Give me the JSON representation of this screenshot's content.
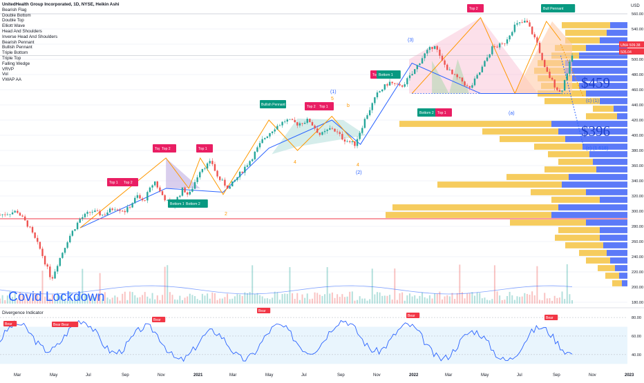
{
  "chart_data": {
    "type": "candlestick",
    "symbol_title": "UnitedHealth Group Incorporated, 1D, NYSE, Heikin Ashi",
    "indicator_legend": [
      "Bearish Flag",
      "Double Bottom",
      "Double Top",
      "Elliott Wave",
      "Head And Shoulders",
      "Inverse Head And Shoulders",
      "Bearish Pennant",
      "Bullish Pennant",
      "Triple Bottom",
      "Triple Top",
      "Falling Wedge",
      "VRVP",
      "Vol",
      "VWAP AA"
    ],
    "currency": "USD",
    "y_ticks": [
      180,
      200,
      220,
      240,
      260,
      280,
      300,
      320,
      340,
      360,
      380,
      400,
      420,
      440,
      460,
      480,
      500,
      520,
      540,
      560
    ],
    "ylim": [
      180,
      560
    ],
    "x_ticks": [
      "Mar",
      "May",
      "Jul",
      "Sep",
      "Nov",
      "2021",
      "Mar",
      "May",
      "Jul",
      "Sep",
      "Nov",
      "2022",
      "Mar",
      "May",
      "Jul",
      "Sep",
      "Nov",
      "2023"
    ],
    "price_badges": [
      {
        "label": "UNH",
        "value": "509.38",
        "color": "#f23645"
      },
      {
        "label": "",
        "value": "505.04",
        "color": "#f23645"
      }
    ],
    "red_horizontal_level": 290,
    "annotations": {
      "lockdown": "Covid Lockdown",
      "target1": "$459",
      "target2": "$396",
      "wave_c1": "(c) (1)",
      "wave_c1618": "(c) (1.618)",
      "wave_a": "(a)",
      "wave_3": "(3)",
      "wave_1": "(1)",
      "wave_2": "(2)",
      "wave_5": "5",
      "wave_4": "4",
      "wave_b": "b",
      "wave_4b": "4",
      "wave_2b": "2",
      "wave_1b": "1",
      "pennant": "Bullish Pennant"
    },
    "pattern_labels": [
      {
        "text": "Top 1",
        "kind": "top"
      },
      {
        "text": "Top 2",
        "kind": "top"
      },
      {
        "text": "Bottom 1",
        "kind": "bottom"
      },
      {
        "text": "Bottom 2",
        "kind": "bottom"
      },
      {
        "text": "Top 1",
        "kind": "top"
      },
      {
        "text": "Top 2",
        "kind": "top"
      },
      {
        "text": "Top 1",
        "kind": "top"
      },
      {
        "text": "Top 2",
        "kind": "top"
      },
      {
        "text": "Top 1",
        "kind": "top"
      },
      {
        "text": "Top 2",
        "kind": "top"
      },
      {
        "text": "Bottom 1",
        "kind": "bottom"
      },
      {
        "text": "Bottom 2",
        "kind": "bottom"
      },
      {
        "text": "Top 1",
        "kind": "top"
      },
      {
        "text": "Top 2",
        "kind": "top"
      },
      {
        "text": "Bull Pennant",
        "kind": "bottom"
      }
    ],
    "price_series": [
      [
        0,
        295
      ],
      [
        0.03,
        300
      ],
      [
        0.05,
        280
      ],
      [
        0.07,
        250
      ],
      [
        0.09,
        210
      ],
      [
        0.1,
        230
      ],
      [
        0.12,
        265
      ],
      [
        0.14,
        290
      ],
      [
        0.16,
        300
      ],
      [
        0.18,
        295
      ],
      [
        0.2,
        305
      ],
      [
        0.22,
        300
      ],
      [
        0.24,
        320
      ],
      [
        0.25,
        312
      ],
      [
        0.27,
        340
      ],
      [
        0.28,
        325
      ],
      [
        0.3,
        305
      ],
      [
        0.32,
        330
      ],
      [
        0.33,
        320
      ],
      [
        0.35,
        355
      ],
      [
        0.37,
        365
      ],
      [
        0.38,
        345
      ],
      [
        0.4,
        330
      ],
      [
        0.42,
        350
      ],
      [
        0.44,
        370
      ],
      [
        0.46,
        395
      ],
      [
        0.48,
        410
      ],
      [
        0.5,
        420
      ],
      [
        0.52,
        415
      ],
      [
        0.54,
        420
      ],
      [
        0.56,
        400
      ],
      [
        0.58,
        410
      ],
      [
        0.6,
        395
      ],
      [
        0.62,
        388
      ],
      [
        0.64,
        425
      ],
      [
        0.66,
        455
      ],
      [
        0.68,
        470
      ],
      [
        0.7,
        463
      ],
      [
        0.72,
        480
      ],
      [
        0.74,
        505
      ],
      [
        0.76,
        520
      ],
      [
        0.77,
        500
      ],
      [
        0.79,
        480
      ],
      [
        0.81,
        470
      ],
      [
        0.82,
        460
      ],
      [
        0.84,
        485
      ],
      [
        0.86,
        515
      ],
      [
        0.88,
        520
      ],
      [
        0.9,
        545
      ],
      [
        0.92,
        550
      ],
      [
        0.94,
        520
      ],
      [
        0.95,
        490
      ],
      [
        0.97,
        465
      ],
      [
        0.98,
        455
      ],
      [
        1.0,
        505
      ]
    ],
    "oscillator": {
      "title": "Divergence Indicator",
      "y_ticks": [
        40,
        60,
        80
      ],
      "ylim": [
        28,
        86
      ],
      "bear_labels": [
        "Bear",
        "Bear Bear",
        "Bear",
        "Bear",
        "Bear",
        "Bear"
      ]
    }
  }
}
